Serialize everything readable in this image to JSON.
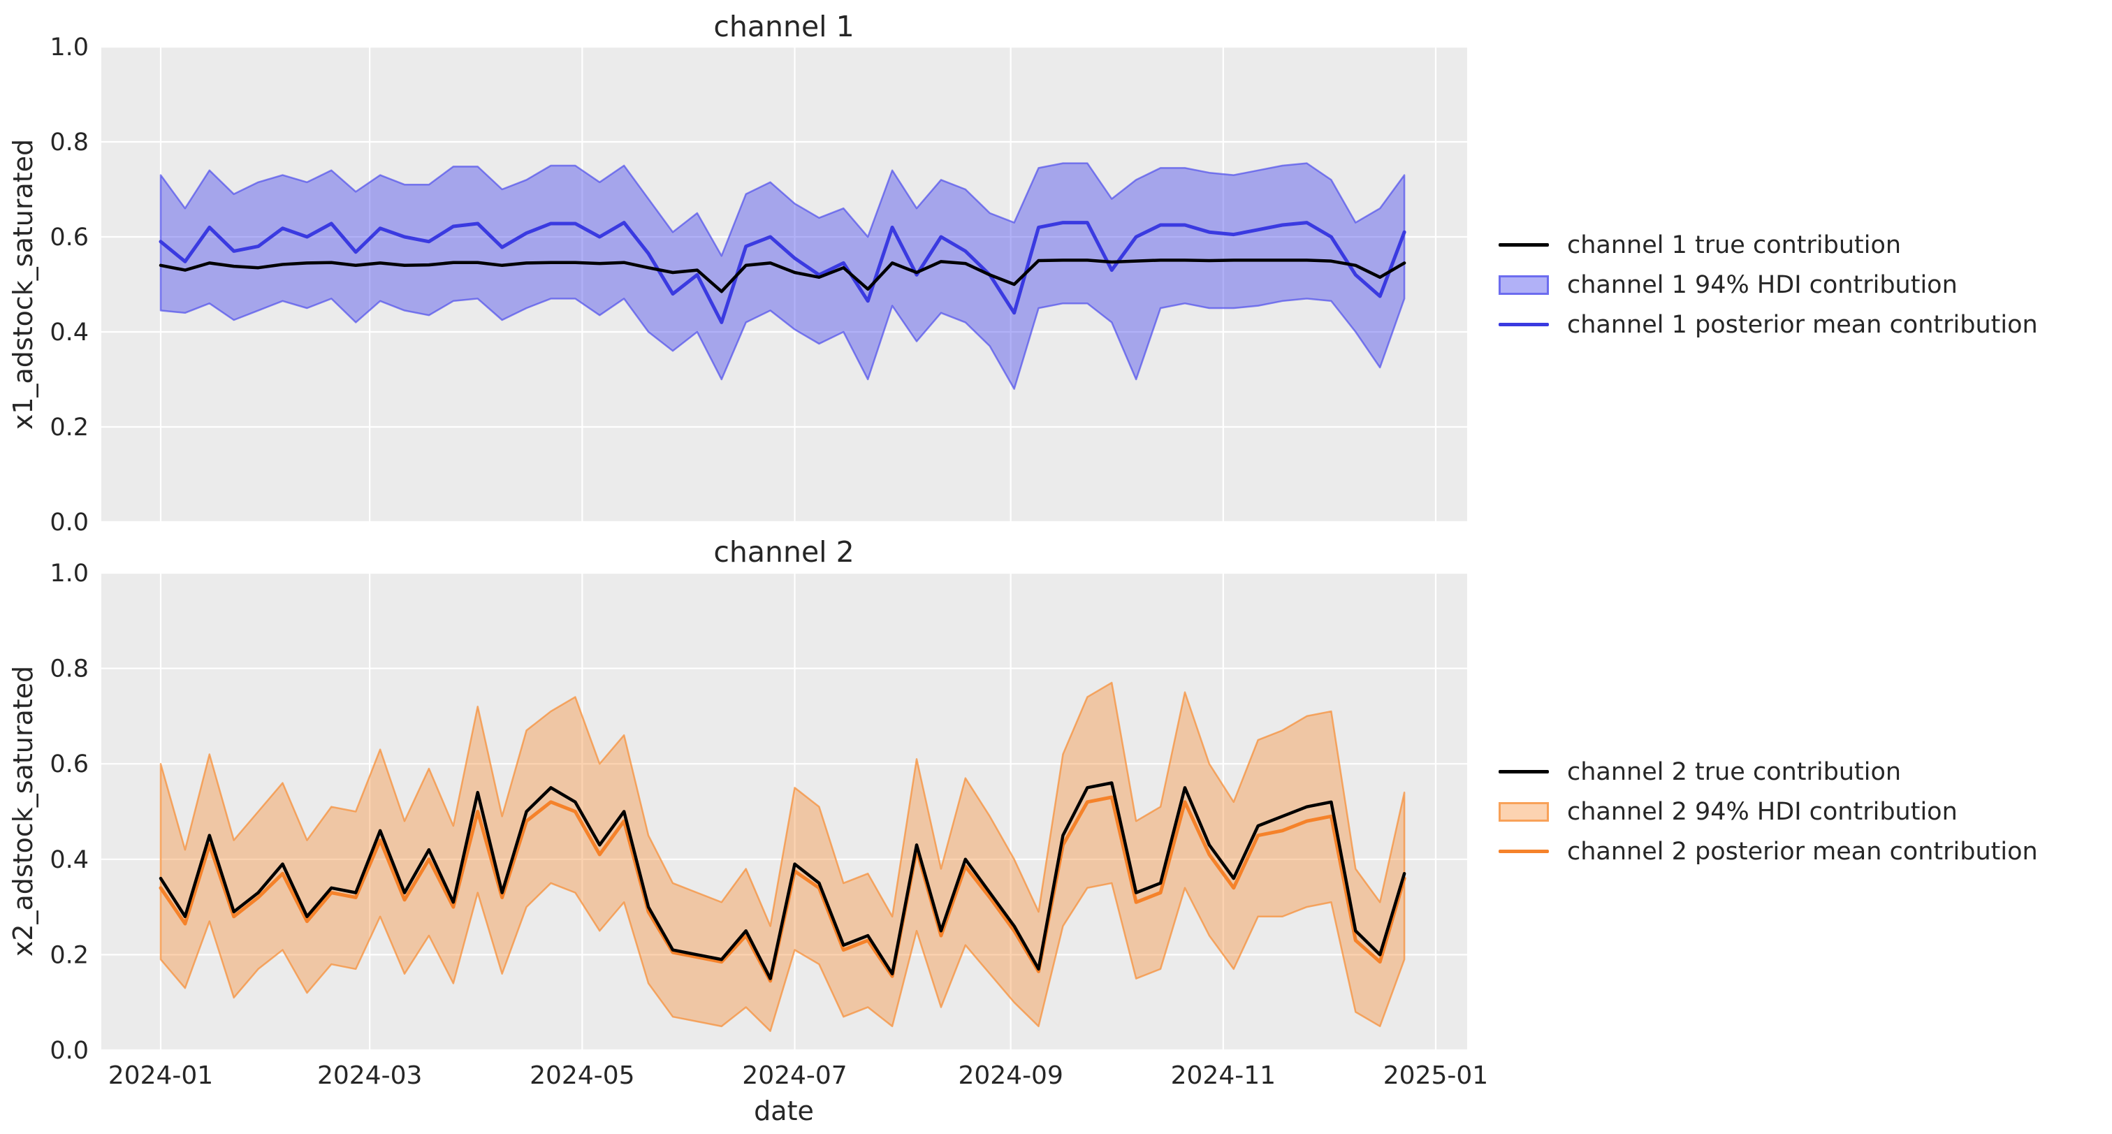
{
  "figure": {
    "background": "#ffffff",
    "plot_background": "#ebebeb",
    "grid_color": "#ffffff",
    "text_color": "#262626",
    "black": "#000000",
    "blue_line": "#3a3ae0",
    "blue_fill": "rgba(70,70,235,0.42)",
    "blue_edge": "rgba(70,70,235,0.65)",
    "orange_line": "#f5822a",
    "orange_fill": "rgba(246,140,50,0.38)",
    "orange_edge": "rgba(246,140,50,0.70)"
  },
  "chart_data": [
    {
      "type": "line",
      "title": "channel 1",
      "ylabel": "x1_adstock_saturated",
      "xlabel": "",
      "ylim": [
        0.0,
        1.0
      ],
      "grid": true,
      "legend_position": "right",
      "yticks": [
        "0.0",
        "0.2",
        "0.4",
        "0.6",
        "0.8",
        "1.0"
      ],
      "xticks": [
        {
          "label": "2024-01",
          "day": 0
        },
        {
          "label": "2024-03",
          "day": 60
        },
        {
          "label": "2024-05",
          "day": 121
        },
        {
          "label": "2024-07",
          "day": 182
        },
        {
          "label": "2024-09",
          "day": 244
        },
        {
          "label": "2024-11",
          "day": 305
        },
        {
          "label": "2025-01",
          "day": 366
        }
      ],
      "show_x_tick_labels": false,
      "dates": [
        "2024-01-01",
        "2024-01-08",
        "2024-01-15",
        "2024-01-22",
        "2024-01-29",
        "2024-02-05",
        "2024-02-12",
        "2024-02-19",
        "2024-02-26",
        "2024-03-04",
        "2024-03-11",
        "2024-03-18",
        "2024-03-25",
        "2024-04-01",
        "2024-04-08",
        "2024-04-15",
        "2024-04-22",
        "2024-04-29",
        "2024-05-06",
        "2024-05-13",
        "2024-05-20",
        "2024-05-27",
        "2024-06-03",
        "2024-06-10",
        "2024-06-17",
        "2024-06-24",
        "2024-07-01",
        "2024-07-08",
        "2024-07-15",
        "2024-07-22",
        "2024-07-29",
        "2024-08-05",
        "2024-08-12",
        "2024-08-19",
        "2024-08-26",
        "2024-09-02",
        "2024-09-09",
        "2024-09-16",
        "2024-09-23",
        "2024-09-30",
        "2024-10-07",
        "2024-10-14",
        "2024-10-21",
        "2024-10-28",
        "2024-11-04",
        "2024-11-11",
        "2024-11-18",
        "2024-11-25",
        "2024-12-02",
        "2024-12-09",
        "2024-12-16",
        "2024-12-23"
      ],
      "series": [
        {
          "name": "channel 1 true contribution",
          "kind": "line",
          "color": "#000000",
          "values": [
            0.54,
            0.53,
            0.545,
            0.538,
            0.535,
            0.542,
            0.545,
            0.546,
            0.54,
            0.545,
            0.54,
            0.541,
            0.546,
            0.546,
            0.54,
            0.545,
            0.546,
            0.546,
            0.544,
            0.546,
            0.535,
            0.525,
            0.53,
            0.485,
            0.54,
            0.545,
            0.525,
            0.515,
            0.535,
            0.49,
            0.545,
            0.525,
            0.548,
            0.544,
            0.52,
            0.5,
            0.55,
            0.551,
            0.551,
            0.547,
            0.549,
            0.551,
            0.551,
            0.55,
            0.551,
            0.551,
            0.551,
            0.551,
            0.549,
            0.54,
            0.515,
            0.545
          ]
        },
        {
          "name": "channel 1 94% HDI contribution",
          "kind": "band",
          "fill": "rgba(70,70,235,0.42)",
          "edge": "rgba(70,70,235,0.65)",
          "lower": [
            0.445,
            0.44,
            0.46,
            0.425,
            0.445,
            0.465,
            0.45,
            0.47,
            0.42,
            0.465,
            0.445,
            0.435,
            0.465,
            0.47,
            0.425,
            0.45,
            0.47,
            0.47,
            0.435,
            0.47,
            0.4,
            0.36,
            0.4,
            0.3,
            0.42,
            0.445,
            0.405,
            0.375,
            0.4,
            0.3,
            0.455,
            0.38,
            0.44,
            0.42,
            0.37,
            0.28,
            0.45,
            0.46,
            0.46,
            0.42,
            0.3,
            0.45,
            0.46,
            0.45,
            0.45,
            0.455,
            0.465,
            0.47,
            0.465,
            0.4,
            0.325,
            0.47
          ],
          "upper": [
            0.73,
            0.66,
            0.74,
            0.69,
            0.715,
            0.73,
            0.715,
            0.74,
            0.695,
            0.73,
            0.71,
            0.71,
            0.748,
            0.748,
            0.7,
            0.72,
            0.75,
            0.75,
            0.715,
            0.75,
            0.68,
            0.61,
            0.65,
            0.56,
            0.69,
            0.715,
            0.67,
            0.64,
            0.66,
            0.6,
            0.74,
            0.66,
            0.72,
            0.7,
            0.65,
            0.63,
            0.745,
            0.755,
            0.755,
            0.68,
            0.72,
            0.745,
            0.745,
            0.735,
            0.73,
            0.74,
            0.75,
            0.755,
            0.72,
            0.63,
            0.66,
            0.73
          ]
        },
        {
          "name": "channel 1 posterior mean contribution",
          "kind": "line",
          "color": "#3a3ae0",
          "values": [
            0.59,
            0.548,
            0.62,
            0.57,
            0.58,
            0.618,
            0.6,
            0.628,
            0.568,
            0.618,
            0.6,
            0.59,
            0.622,
            0.628,
            0.578,
            0.608,
            0.628,
            0.628,
            0.6,
            0.63,
            0.565,
            0.48,
            0.52,
            0.42,
            0.58,
            0.6,
            0.555,
            0.52,
            0.545,
            0.465,
            0.62,
            0.52,
            0.6,
            0.57,
            0.52,
            0.44,
            0.62,
            0.63,
            0.63,
            0.53,
            0.6,
            0.625,
            0.625,
            0.61,
            0.605,
            0.615,
            0.625,
            0.63,
            0.6,
            0.52,
            0.475,
            0.61
          ]
        }
      ]
    },
    {
      "type": "line",
      "title": "channel 2",
      "ylabel": "x2_adstock_saturated",
      "xlabel": "date",
      "ylim": [
        0.0,
        1.0
      ],
      "grid": true,
      "legend_position": "right",
      "yticks": [
        "0.0",
        "0.2",
        "0.4",
        "0.6",
        "0.8",
        "1.0"
      ],
      "xticks": [
        {
          "label": "2024-01",
          "day": 0
        },
        {
          "label": "2024-03",
          "day": 60
        },
        {
          "label": "2024-05",
          "day": 121
        },
        {
          "label": "2024-07",
          "day": 182
        },
        {
          "label": "2024-09",
          "day": 244
        },
        {
          "label": "2024-11",
          "day": 305
        },
        {
          "label": "2025-01",
          "day": 366
        }
      ],
      "show_x_tick_labels": true,
      "dates": [
        "2024-01-01",
        "2024-01-08",
        "2024-01-15",
        "2024-01-22",
        "2024-01-29",
        "2024-02-05",
        "2024-02-12",
        "2024-02-19",
        "2024-02-26",
        "2024-03-04",
        "2024-03-11",
        "2024-03-18",
        "2024-03-25",
        "2024-04-01",
        "2024-04-08",
        "2024-04-15",
        "2024-04-22",
        "2024-04-29",
        "2024-05-06",
        "2024-05-13",
        "2024-05-20",
        "2024-05-27",
        "2024-06-03",
        "2024-06-10",
        "2024-06-17",
        "2024-06-24",
        "2024-07-01",
        "2024-07-08",
        "2024-07-15",
        "2024-07-22",
        "2024-07-29",
        "2024-08-05",
        "2024-08-12",
        "2024-08-19",
        "2024-08-26",
        "2024-09-02",
        "2024-09-09",
        "2024-09-16",
        "2024-09-23",
        "2024-09-30",
        "2024-10-07",
        "2024-10-14",
        "2024-10-21",
        "2024-10-28",
        "2024-11-04",
        "2024-11-11",
        "2024-11-18",
        "2024-11-25",
        "2024-12-02",
        "2024-12-09",
        "2024-12-16",
        "2024-12-23"
      ],
      "series": [
        {
          "name": "channel 2 true contribution",
          "kind": "line",
          "color": "#000000",
          "values": [
            0.36,
            0.28,
            0.45,
            0.29,
            0.33,
            0.39,
            0.28,
            0.34,
            0.33,
            0.46,
            0.33,
            0.42,
            0.31,
            0.54,
            0.33,
            0.5,
            0.55,
            0.52,
            0.43,
            0.5,
            0.3,
            0.21,
            0.2,
            0.19,
            0.25,
            0.15,
            0.39,
            0.35,
            0.22,
            0.24,
            0.16,
            0.43,
            0.25,
            0.4,
            0.33,
            0.26,
            0.17,
            0.45,
            0.55,
            0.56,
            0.33,
            0.35,
            0.55,
            0.43,
            0.36,
            0.47,
            0.49,
            0.51,
            0.52,
            0.25,
            0.2,
            0.37
          ]
        },
        {
          "name": "channel 2 94% HDI contribution",
          "kind": "band",
          "fill": "rgba(246,140,50,0.38)",
          "edge": "rgba(246,140,50,0.70)",
          "lower": [
            0.19,
            0.13,
            0.27,
            0.11,
            0.17,
            0.21,
            0.12,
            0.18,
            0.17,
            0.28,
            0.16,
            0.24,
            0.14,
            0.33,
            0.16,
            0.3,
            0.35,
            0.33,
            0.25,
            0.31,
            0.14,
            0.07,
            0.06,
            0.05,
            0.09,
            0.04,
            0.21,
            0.18,
            0.07,
            0.09,
            0.05,
            0.25,
            0.09,
            0.22,
            0.16,
            0.1,
            0.05,
            0.26,
            0.34,
            0.35,
            0.15,
            0.17,
            0.34,
            0.24,
            0.17,
            0.28,
            0.28,
            0.3,
            0.31,
            0.08,
            0.05,
            0.19
          ],
          "upper": [
            0.6,
            0.42,
            0.62,
            0.44,
            0.5,
            0.56,
            0.44,
            0.51,
            0.5,
            0.63,
            0.48,
            0.59,
            0.47,
            0.72,
            0.49,
            0.67,
            0.71,
            0.74,
            0.6,
            0.66,
            0.45,
            0.35,
            0.33,
            0.31,
            0.38,
            0.26,
            0.55,
            0.51,
            0.35,
            0.37,
            0.28,
            0.61,
            0.38,
            0.57,
            0.49,
            0.4,
            0.29,
            0.62,
            0.74,
            0.77,
            0.48,
            0.51,
            0.75,
            0.6,
            0.52,
            0.65,
            0.67,
            0.7,
            0.71,
            0.38,
            0.31,
            0.54
          ]
        },
        {
          "name": "channel 2 posterior mean contribution",
          "kind": "line",
          "color": "#f5822a",
          "values": [
            0.34,
            0.265,
            0.43,
            0.28,
            0.32,
            0.37,
            0.27,
            0.33,
            0.32,
            0.44,
            0.315,
            0.4,
            0.3,
            0.5,
            0.32,
            0.48,
            0.52,
            0.5,
            0.41,
            0.48,
            0.29,
            0.205,
            0.195,
            0.185,
            0.24,
            0.145,
            0.375,
            0.34,
            0.21,
            0.23,
            0.155,
            0.42,
            0.24,
            0.385,
            0.32,
            0.25,
            0.165,
            0.43,
            0.52,
            0.53,
            0.31,
            0.33,
            0.52,
            0.41,
            0.34,
            0.45,
            0.46,
            0.48,
            0.49,
            0.23,
            0.185,
            0.36
          ]
        }
      ]
    }
  ]
}
